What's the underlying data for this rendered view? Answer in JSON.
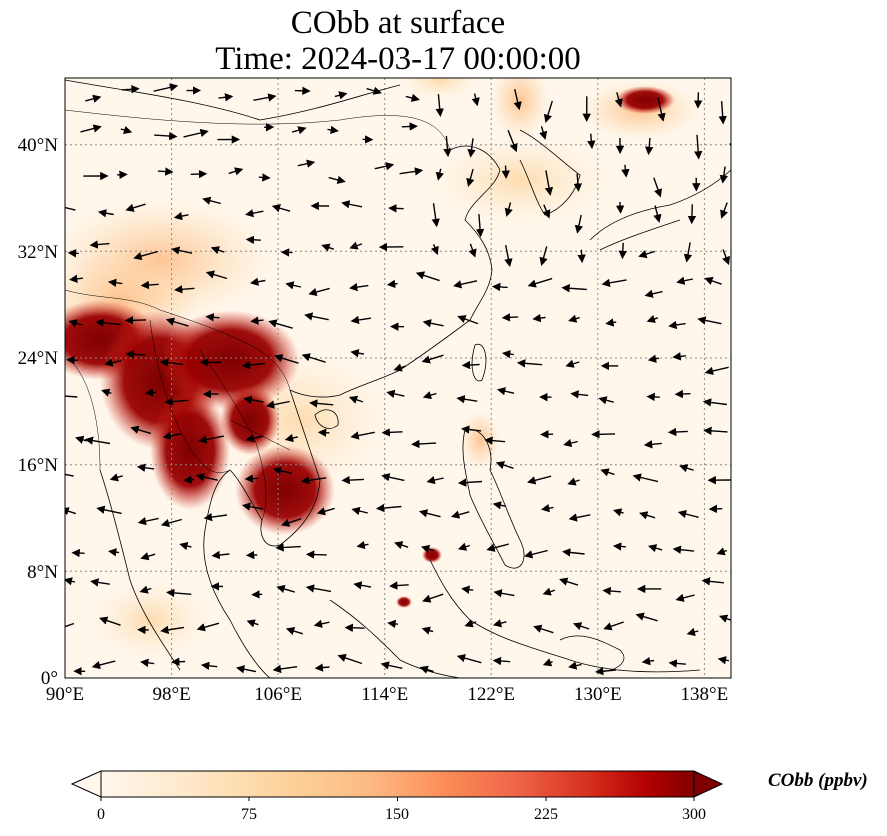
{
  "title": {
    "line1": "CObb at surface",
    "line2": "Time: 2024-03-17 00:00:00"
  },
  "map": {
    "lon_range": [
      90,
      140
    ],
    "lat_range": [
      0,
      45
    ],
    "lon_ticks": [
      "90°E",
      "98°E",
      "106°E",
      "114°E",
      "122°E",
      "130°E",
      "138°E"
    ],
    "lat_ticks": [
      "0°",
      "8°N",
      "16°N",
      "24°N",
      "32°N",
      "40°N"
    ],
    "gridlines": true,
    "colormap": "OrRd",
    "colors": {
      "low": "#fff7ec",
      "mid": "#fc8d59",
      "high": "#7f0000"
    }
  },
  "colorbar": {
    "label": "CObb (ppbv)",
    "min": 0,
    "max": 300,
    "extend": "both",
    "ticks": [
      "0",
      "75",
      "150",
      "225",
      "300"
    ]
  }
}
